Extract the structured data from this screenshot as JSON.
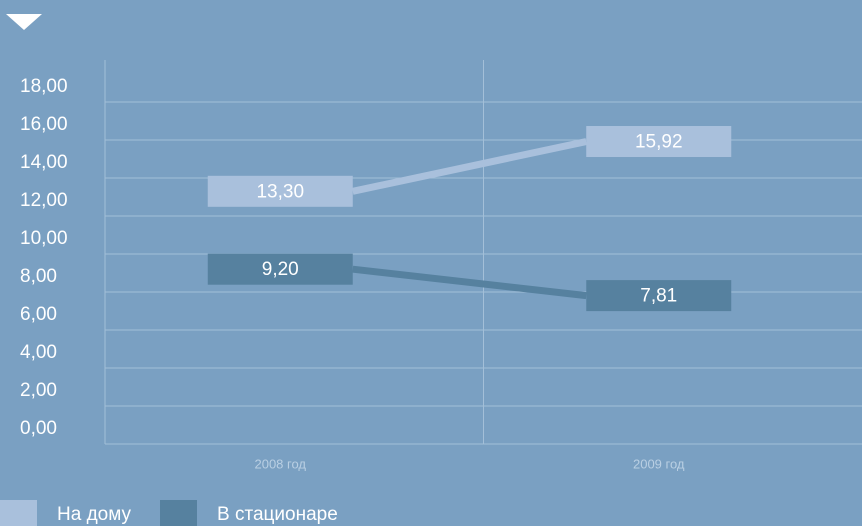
{
  "chart_data": {
    "type": "line",
    "categories": [
      "2008 год",
      "2009 год"
    ],
    "series": [
      {
        "name": "На дому",
        "color": "#a9c0dc",
        "values": [
          13.3,
          15.92
        ],
        "value_labels": [
          "13,30",
          "15,92"
        ]
      },
      {
        "name": "В стационаре",
        "color": "#56819f",
        "values": [
          9.2,
          7.81
        ],
        "value_labels": [
          "9,20",
          "7,81"
        ]
      }
    ],
    "ylim": [
      0,
      18
    ],
    "yticks": [
      {
        "value": 0,
        "label": "0,00"
      },
      {
        "value": 2,
        "label": "2,00"
      },
      {
        "value": 4,
        "label": "4,00"
      },
      {
        "value": 6,
        "label": "6,00"
      },
      {
        "value": 8,
        "label": "8,00"
      },
      {
        "value": 10,
        "label": "10,00"
      },
      {
        "value": 12,
        "label": "12,00"
      },
      {
        "value": 14,
        "label": "14,00"
      },
      {
        "value": 16,
        "label": "16,00"
      },
      {
        "value": 18,
        "label": "18,00"
      }
    ],
    "grid": true
  }
}
